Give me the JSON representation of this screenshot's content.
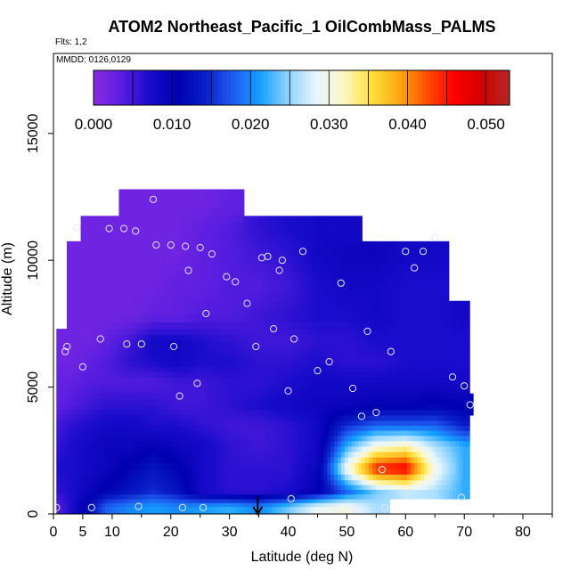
{
  "chart_data": {
    "type": "heatmap",
    "title": "ATOM2 Northeast_Pacific_1 OilCombMass_PALMS",
    "flights_label": "Flts: 1,2",
    "dates_label": "MMDD: 0126,0129",
    "xlabel": "Latitude (deg N)",
    "ylabel": "Altitude (m)",
    "xlim": [
      0,
      85
    ],
    "ylim": [
      0,
      17500
    ],
    "xticks": [
      0,
      5,
      10,
      20,
      30,
      40,
      50,
      60,
      70,
      80
    ],
    "xtick_labels": [
      "0",
      "5",
      "10",
      "20",
      "30",
      "40",
      "50",
      "60",
      "70",
      "80"
    ],
    "yticks": [
      0,
      5000,
      10000,
      15000
    ],
    "ytick_labels": [
      "0",
      "5000",
      "10000",
      "15000"
    ],
    "colorbar": {
      "range": [
        0,
        0.053
      ],
      "ticks": [
        0.0,
        0.01,
        0.02,
        0.03,
        0.04,
        0.05
      ],
      "tick_labels": [
        "0.000",
        "0.010",
        "0.020",
        "0.030",
        "0.040",
        "0.050"
      ],
      "colors": [
        "#8a2be2",
        "#5a1ee0",
        "#1a0ccc",
        "#0000b0",
        "#0a1ec8",
        "#1e5af0",
        "#14a0ff",
        "#8cd2ff",
        "#e6f6ff",
        "#fff8c8",
        "#ffe13c",
        "#ffaa14",
        "#ff5000",
        "#ff0000",
        "#d20000",
        "#b42828"
      ]
    },
    "marker": {
      "x": 34.8,
      "label": "arrow"
    },
    "x_sample_lat": [
      1,
      3,
      6,
      9,
      13,
      17,
      21,
      25,
      30,
      35,
      40,
      45,
      50,
      55,
      60,
      65,
      70,
      71.5
    ],
    "z_rows": [
      {
        "alt": 300,
        "values": [
          0.004,
          0.007,
          0.012,
          0.018,
          0.02,
          0.021,
          0.02,
          0.021,
          0.022,
          0.02,
          0.024,
          0.029,
          0.03,
          0.026,
          null,
          null,
          null,
          null
        ]
      },
      {
        "alt": 900,
        "values": [
          0.006,
          0.007,
          0.009,
          0.011,
          0.013,
          0.015,
          0.013,
          0.008,
          0.006,
          0.006,
          0.007,
          0.01,
          0.018,
          0.024,
          0.027,
          0.026,
          0.022,
          null
        ]
      },
      {
        "alt": 1800,
        "values": [
          0.007,
          0.007,
          0.008,
          0.009,
          0.011,
          0.013,
          0.011,
          0.008,
          0.006,
          0.006,
          0.006,
          0.009,
          0.03,
          0.045,
          0.047,
          0.03,
          0.022,
          null
        ]
      },
      {
        "alt": 2700,
        "values": [
          0.006,
          0.007,
          0.008,
          0.009,
          0.009,
          0.01,
          0.009,
          0.008,
          0.006,
          0.005,
          0.006,
          0.008,
          0.022,
          0.03,
          0.032,
          0.026,
          0.022,
          null
        ]
      },
      {
        "alt": 3500,
        "values": [
          0.005,
          0.006,
          0.007,
          0.008,
          0.008,
          0.007,
          0.007,
          0.006,
          0.005,
          0.005,
          0.006,
          0.008,
          0.015,
          0.018,
          0.018,
          0.018,
          0.014,
          null
        ]
      },
      {
        "alt": 4300,
        "values": [
          0.003,
          0.004,
          0.005,
          0.006,
          0.006,
          0.006,
          0.005,
          0.005,
          0.006,
          0.007,
          0.008,
          0.009,
          0.009,
          0.01,
          0.01,
          0.011,
          0.01,
          0.01
        ]
      },
      {
        "alt": 5200,
        "values": [
          0.003,
          0.003,
          0.004,
          0.004,
          0.004,
          0.004,
          0.005,
          0.005,
          0.006,
          0.006,
          0.007,
          0.008,
          0.008,
          0.008,
          0.008,
          0.008,
          0.008,
          null
        ]
      },
      {
        "alt": 6000,
        "values": [
          0.002,
          0.002,
          0.003,
          0.004,
          0.006,
          0.007,
          0.008,
          0.007,
          0.007,
          0.006,
          0.006,
          0.007,
          0.006,
          0.006,
          0.007,
          0.007,
          0.007,
          null
        ]
      },
      {
        "alt": 6800,
        "values": [
          0.002,
          0.002,
          0.002,
          0.003,
          0.005,
          0.008,
          0.008,
          0.007,
          0.006,
          0.005,
          0.005,
          0.006,
          0.006,
          0.007,
          0.007,
          0.007,
          0.007,
          null
        ]
      },
      {
        "alt": 7800,
        "values": [
          null,
          0.002,
          0.002,
          0.002,
          0.002,
          0.003,
          0.003,
          0.004,
          0.004,
          0.005,
          0.006,
          0.007,
          0.007,
          0.008,
          0.007,
          0.007,
          0.008,
          null
        ]
      },
      {
        "alt": 9000,
        "values": [
          null,
          0.002,
          0.002,
          0.002,
          0.002,
          0.002,
          0.003,
          0.003,
          0.004,
          0.004,
          0.005,
          0.007,
          0.008,
          0.008,
          0.007,
          0.007,
          null,
          null
        ]
      },
      {
        "alt": 10200,
        "values": [
          null,
          0.002,
          0.002,
          0.002,
          0.002,
          0.002,
          0.002,
          0.003,
          0.004,
          0.005,
          0.006,
          0.008,
          0.009,
          0.009,
          0.008,
          0.008,
          null,
          null
        ]
      },
      {
        "alt": 11300,
        "values": [
          null,
          null,
          0.002,
          0.002,
          0.002,
          0.002,
          0.002,
          0.003,
          0.004,
          0.006,
          0.007,
          0.008,
          0.008,
          null,
          null,
          null,
          null,
          null
        ]
      },
      {
        "alt": 12200,
        "values": [
          null,
          null,
          null,
          null,
          0.002,
          0.002,
          0.002,
          0.002,
          0.003,
          null,
          null,
          null,
          null,
          null,
          null,
          null,
          null,
          null
        ]
      }
    ],
    "samples": [
      [
        0.5,
        250
      ],
      [
        2,
        6400
      ],
      [
        2.3,
        6600
      ],
      [
        4,
        11300
      ],
      [
        5,
        5800
      ],
      [
        6.5,
        250
      ],
      [
        8,
        6900
      ],
      [
        9.5,
        11250
      ],
      [
        12,
        11250
      ],
      [
        12.5,
        6700
      ],
      [
        14,
        11150
      ],
      [
        14.5,
        300
      ],
      [
        15,
        6700
      ],
      [
        17,
        12400
      ],
      [
        17.5,
        10600
      ],
      [
        20,
        10600
      ],
      [
        20.5,
        6600
      ],
      [
        21.5,
        4650
      ],
      [
        22,
        250
      ],
      [
        22.5,
        10550
      ],
      [
        23,
        9600
      ],
      [
        24.5,
        5150
      ],
      [
        25,
        10500
      ],
      [
        25.5,
        250
      ],
      [
        26,
        7900
      ],
      [
        27,
        10250
      ],
      [
        29.5,
        9350
      ],
      [
        31,
        9150
      ],
      [
        33,
        8300
      ],
      [
        34.5,
        6600
      ],
      [
        35.5,
        10100
      ],
      [
        36.5,
        10150
      ],
      [
        37.5,
        7300
      ],
      [
        38.5,
        9600
      ],
      [
        39,
        10000
      ],
      [
        40,
        4850
      ],
      [
        40.5,
        600
      ],
      [
        41,
        6900
      ],
      [
        42.5,
        10350
      ],
      [
        45,
        5650
      ],
      [
        47,
        6000
      ],
      [
        49,
        9100
      ],
      [
        51,
        4950
      ],
      [
        51.5,
        200
      ],
      [
        52.5,
        3850
      ],
      [
        53.5,
        7200
      ],
      [
        55,
        4000
      ],
      [
        56,
        1750
      ],
      [
        56.5,
        250
      ],
      [
        57.5,
        6400
      ],
      [
        60,
        10350
      ],
      [
        61.5,
        9700
      ],
      [
        63,
        10350
      ],
      [
        65,
        10900
      ],
      [
        68,
        5400
      ],
      [
        69.5,
        650
      ],
      [
        70,
        5050
      ],
      [
        71,
        4300
      ]
    ]
  }
}
